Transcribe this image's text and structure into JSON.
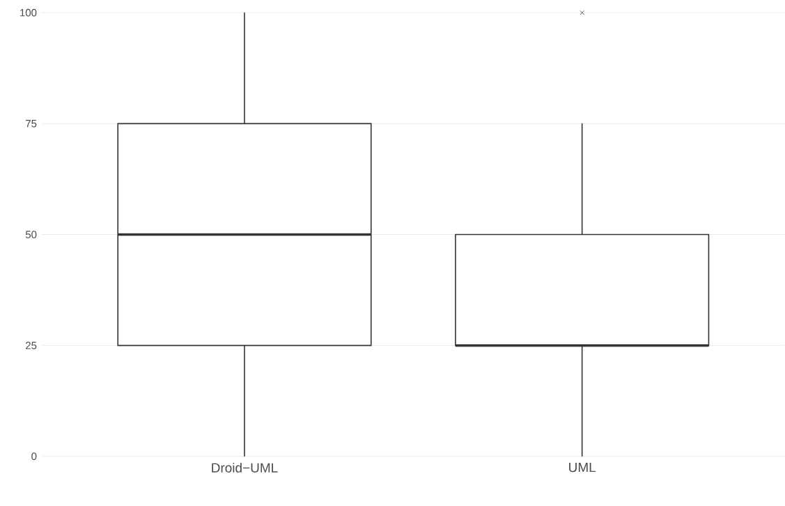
{
  "chart_data": {
    "type": "box",
    "categories": [
      "Droid−UML",
      "UML"
    ],
    "boxes": [
      {
        "low": 0,
        "q1": 25,
        "median": 50,
        "q3": 75,
        "high": 100
      },
      {
        "low": 0,
        "q1": 25,
        "median": 25,
        "q3": 50,
        "high": 75,
        "outliers": [
          100
        ]
      }
    ],
    "color": "#333333",
    "ylim": [
      0,
      100
    ],
    "yticks": [
      0,
      25,
      50,
      75,
      100
    ],
    "grid": "y",
    "marker": "cross"
  }
}
